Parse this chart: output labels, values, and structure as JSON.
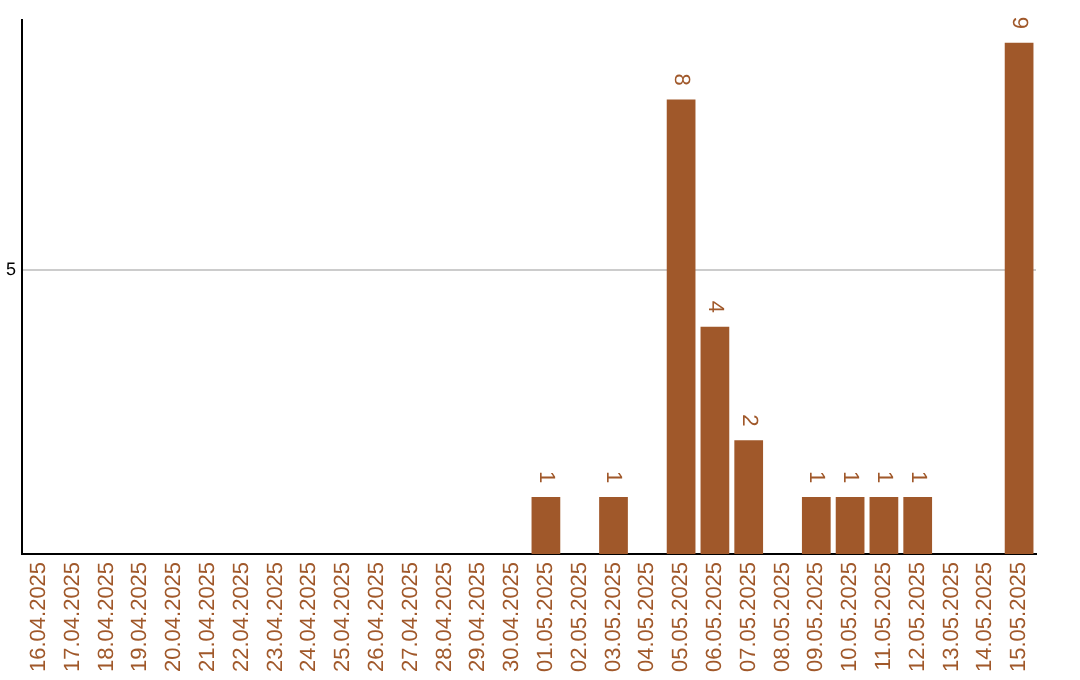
{
  "chart_data": {
    "type": "bar",
    "categories": [
      "16.04.2025",
      "17.04.2025",
      "18.04.2025",
      "19.04.2025",
      "20.04.2025",
      "21.04.2025",
      "22.04.2025",
      "23.04.2025",
      "24.04.2025",
      "25.04.2025",
      "26.04.2025",
      "27.04.2025",
      "28.04.2025",
      "29.04.2025",
      "30.04.2025",
      "01.05.2025",
      "02.05.2025",
      "03.05.2025",
      "04.05.2025",
      "05.05.2025",
      "06.05.2025",
      "07.05.2025",
      "08.05.2025",
      "09.05.2025",
      "10.05.2025",
      "11.05.2025",
      "12.05.2025",
      "13.05.2025",
      "14.05.2025",
      "15.05.2025"
    ],
    "values": [
      null,
      null,
      null,
      null,
      null,
      null,
      null,
      null,
      null,
      null,
      null,
      null,
      null,
      null,
      null,
      1,
      null,
      1,
      null,
      8,
      4,
      2,
      null,
      1,
      1,
      1,
      1,
      null,
      null,
      9
    ],
    "color": "#a0582a",
    "ylim": [
      0,
      9.4
    ],
    "yticks": [
      5
    ],
    "grid": "y",
    "data_labels": true
  }
}
